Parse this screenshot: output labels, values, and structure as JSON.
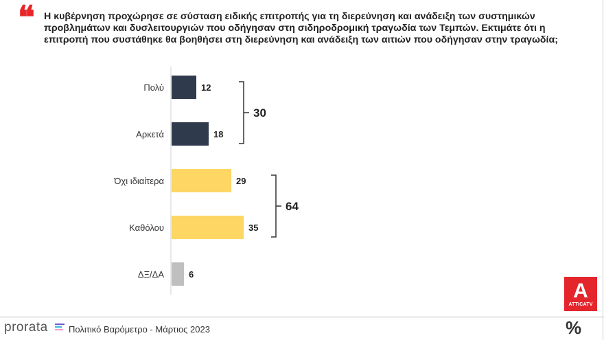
{
  "question": {
    "quote_icon": "quote-icon",
    "text": "Η κυβέρνηση προχώρησε σε σύσταση ειδικής επιτροπής για τη διερεύνηση και ανάδειξη των συστημικών προβλημάτων και δυσλειτουργιών που οδήγησαν στη σιδηροδρομική τραγωδία των Τεμπών. Εκτιμάτε ότι η επιτροπή που συστάθηκε θα βοηθήσει στη διερεύνηση και ανάδειξη των αιτιών που οδήγησαν στην τραγωδία;"
  },
  "chart_data": {
    "type": "bar",
    "orientation": "horizontal",
    "categories": [
      "Πολύ",
      "Αρκετά",
      "Όχι ιδιαίτερα",
      "Καθόλου",
      "ΔΞ/ΔΑ"
    ],
    "values": [
      12,
      18,
      29,
      35,
      6
    ],
    "colors": [
      "#2f3a4c",
      "#2f3a4c",
      "#fdd663",
      "#fdd663",
      "#bfbfbf"
    ],
    "groups": [
      {
        "members": [
          0,
          1
        ],
        "total": "30"
      },
      {
        "members": [
          2,
          3
        ],
        "total": "64"
      }
    ],
    "title": "",
    "xlabel": "",
    "ylabel": "",
    "xlim": [
      0,
      35
    ]
  },
  "branding": {
    "logo_letter": "A",
    "logo_text": "ATTICATV",
    "footer_brand": "prorata",
    "footer_text": "Πολιτικό Βαρόμετρο - Μάρτιος 2023",
    "footer_symbol": "%",
    "logo_color": "#e4262c"
  }
}
